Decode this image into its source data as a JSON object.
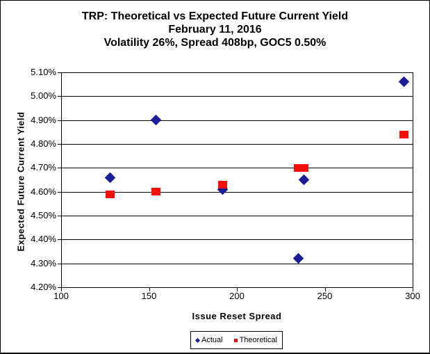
{
  "title": {
    "line1": "TRP: Theoretical vs Expected Future Current Yield",
    "line2": "February 11, 2016",
    "line3": "Volatility 26%, Spread 408bp, GOC5 0.50%"
  },
  "colors": {
    "actual": "#1c1c96",
    "theoretical": "#f90d06",
    "axis": "#000000",
    "background": "#ffffff"
  },
  "legend": {
    "actual_label": "Actual",
    "theoretical_label": "Theoretical"
  },
  "chart_data": {
    "type": "scatter",
    "title": "TRP: Theoretical vs Expected Future Current Yield",
    "subtitle1": "February 11, 2016",
    "subtitle2": "Volatility 26%, Spread 408bp, GOC5 0.50%",
    "xlabel": "Issue Reset Spread",
    "ylabel": "Expected Future Current Yield",
    "xlim": [
      100,
      300
    ],
    "ylim": [
      4.2,
      5.1
    ],
    "grid": "horizontal",
    "legend_position": "bottom",
    "xticks": [
      {
        "v": 100,
        "label": "100"
      },
      {
        "v": 150,
        "label": "150"
      },
      {
        "v": 200,
        "label": "200"
      },
      {
        "v": 250,
        "label": "250"
      },
      {
        "v": 300,
        "label": "300"
      }
    ],
    "yticks": [
      {
        "v": 5.1,
        "label": "5.10%"
      },
      {
        "v": 5.0,
        "label": "5.00%"
      },
      {
        "v": 4.9,
        "label": "4.90%"
      },
      {
        "v": 4.8,
        "label": "4.80%"
      },
      {
        "v": 4.7,
        "label": "4.70%"
      },
      {
        "v": 4.6,
        "label": "4.60%"
      },
      {
        "v": 4.5,
        "label": "4.50%"
      },
      {
        "v": 4.4,
        "label": "4.40%"
      },
      {
        "v": 4.3,
        "label": "4.30%"
      },
      {
        "v": 4.2,
        "label": "4.20%"
      }
    ],
    "series": [
      {
        "name": "Actual",
        "marker": "diamond",
        "color": "#1c1c96",
        "points": [
          {
            "x": 128,
            "y": 4.66
          },
          {
            "x": 154,
            "y": 4.9
          },
          {
            "x": 192,
            "y": 4.61
          },
          {
            "x": 235,
            "y": 4.32
          },
          {
            "x": 238,
            "y": 4.65
          },
          {
            "x": 295,
            "y": 5.06
          }
        ]
      },
      {
        "name": "Theoretical",
        "marker": "square",
        "color": "#f90d06",
        "points": [
          {
            "x": 128,
            "y": 4.59
          },
          {
            "x": 154,
            "y": 4.6
          },
          {
            "x": 192,
            "y": 4.63
          },
          {
            "x": 235,
            "y": 4.7
          },
          {
            "x": 238,
            "y": 4.7
          },
          {
            "x": 295,
            "y": 4.84
          }
        ]
      }
    ]
  }
}
